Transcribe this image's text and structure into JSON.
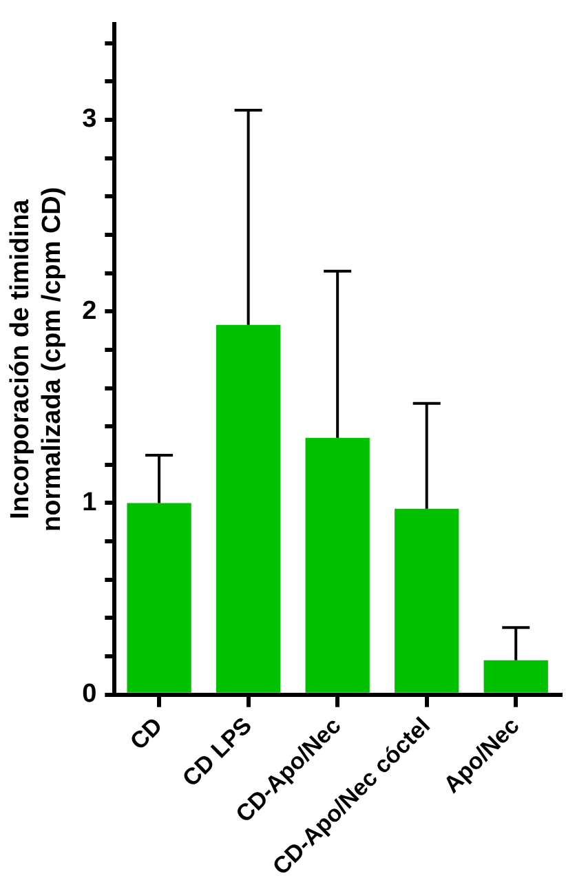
{
  "chart_data": {
    "type": "bar",
    "ylabel": "Incorporación de timidina\nnormalizada (cpm /cpm CD)",
    "categories": [
      "CD",
      "CD LPS",
      "CD-Apo/Nec",
      "CD-Apo/Nec cóctel",
      "Apo/Nec"
    ],
    "values": [
      1.0,
      1.93,
      1.34,
      0.97,
      0.18
    ],
    "errors": [
      [
        1.0,
        1.25
      ],
      [
        1.93,
        3.05
      ],
      [
        1.34,
        2.21
      ],
      [
        0.97,
        1.52
      ],
      [
        0.18,
        0.35
      ]
    ],
    "color": "#00c000",
    "ylim": [
      0,
      3.5
    ],
    "yticks": [
      0,
      {
        "value": 0.2,
        "label": null
      },
      {
        "value": 0.4,
        "label": null
      },
      {
        "value": 0.6,
        "label": null
      },
      {
        "value": 0.8,
        "label": null
      },
      1,
      {
        "value": 1.2,
        "label": null
      },
      {
        "value": 1.4,
        "label": null
      },
      {
        "value": 1.6,
        "label": null
      },
      {
        "value": 1.8,
        "label": null
      },
      2,
      {
        "value": 2.2,
        "label": null
      },
      {
        "value": 2.4,
        "label": null
      },
      {
        "value": 2.6,
        "label": null
      },
      {
        "value": 2.8,
        "label": null
      },
      3,
      {
        "value": 3.2,
        "label": null
      },
      {
        "value": 3.4,
        "label": null
      }
    ],
    "grid": false,
    "legend": false
  }
}
